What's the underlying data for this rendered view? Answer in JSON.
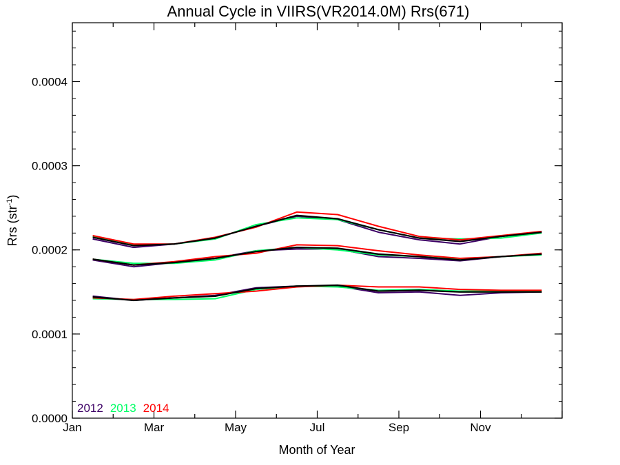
{
  "chart_data": {
    "type": "line",
    "title": "Annual Cycle in VIIRS(VR2014.0M) Rrs(671)",
    "xlabel": "Month of Year",
    "ylabel": {
      "main": "Rrs (str",
      "sup": "-1",
      "close": ")"
    },
    "xlim": [
      0,
      12
    ],
    "ylim": [
      0.0,
      0.00047
    ],
    "x_ticks": [
      {
        "value": 0,
        "label": "Jan"
      },
      {
        "value": 2,
        "label": "Mar"
      },
      {
        "value": 4,
        "label": "May"
      },
      {
        "value": 6,
        "label": "Jul"
      },
      {
        "value": 8,
        "label": "Sep"
      },
      {
        "value": 10,
        "label": "Nov"
      }
    ],
    "y_ticks": [
      {
        "value": 0.0,
        "label": "0.0000"
      },
      {
        "value": 0.0001,
        "label": "0.0001"
      },
      {
        "value": 0.0002,
        "label": "0.0002"
      },
      {
        "value": 0.0003,
        "label": "0.0003"
      },
      {
        "value": 0.0004,
        "label": "0.0004"
      }
    ],
    "x": [
      0.5,
      1.5,
      2.5,
      3.5,
      4.5,
      5.5,
      6.5,
      7.5,
      8.5,
      9.5,
      10.5,
      11.5
    ],
    "series": [
      {
        "name": "2012",
        "group": "upper",
        "color": "#3d0066",
        "values": [
          0.000213,
          0.000203,
          0.000207,
          0.000214,
          0.000228,
          0.00024,
          0.000236,
          0.000221,
          0.000212,
          0.000207,
          0.000216,
          0.000221
        ]
      },
      {
        "name": "2013",
        "group": "upper",
        "color": "#00ff66",
        "values": [
          0.000216,
          0.000206,
          0.000207,
          0.000213,
          0.00023,
          0.000238,
          0.000236,
          0.000224,
          0.000214,
          0.000213,
          0.000214,
          0.00022
        ]
      },
      {
        "name": "2014",
        "group": "upper",
        "color": "#ff0000",
        "values": [
          0.000217,
          0.000207,
          0.000207,
          0.000215,
          0.000227,
          0.000245,
          0.000242,
          0.000228,
          0.000216,
          0.000212,
          0.000217,
          0.000222
        ]
      },
      {
        "name": "",
        "group": "upper",
        "color": "#000000",
        "values": [
          0.000215,
          0.000205,
          0.000207,
          0.000214,
          0.000228,
          0.000241,
          0.000237,
          0.000224,
          0.000214,
          0.00021,
          0.000216,
          0.000221
        ]
      },
      {
        "name": "2012",
        "group": "middle",
        "color": "#3d0066",
        "values": [
          0.000188,
          0.00018,
          0.000185,
          0.00019,
          0.000199,
          0.000201,
          0.000201,
          0.000192,
          0.00019,
          0.000187,
          0.000192,
          0.000195
        ]
      },
      {
        "name": "2013",
        "group": "middle",
        "color": "#00ff66",
        "values": [
          0.000189,
          0.000184,
          0.000184,
          0.000188,
          0.000199,
          0.000203,
          0.0002,
          0.000194,
          0.000192,
          0.000189,
          0.000192,
          0.000194
        ]
      },
      {
        "name": "2014",
        "group": "middle",
        "color": "#ff0000",
        "values": [
          0.000189,
          0.000182,
          0.000186,
          0.000192,
          0.000196,
          0.000206,
          0.000205,
          0.000199,
          0.000194,
          0.00019,
          0.000192,
          0.000196
        ]
      },
      {
        "name": "",
        "group": "middle",
        "color": "#000000",
        "values": [
          0.000189,
          0.000182,
          0.000185,
          0.00019,
          0.000198,
          0.000203,
          0.000202,
          0.000195,
          0.000192,
          0.000188,
          0.000192,
          0.000195
        ]
      },
      {
        "name": "2012",
        "group": "lower",
        "color": "#3d0066",
        "values": [
          0.000145,
          0.00014,
          0.000143,
          0.000146,
          0.000155,
          0.000157,
          0.000157,
          0.000149,
          0.00015,
          0.000146,
          0.000149,
          0.00015
        ]
      },
      {
        "name": "2013",
        "group": "lower",
        "color": "#00ff66",
        "values": [
          0.000142,
          0.000141,
          0.000141,
          0.000142,
          0.000153,
          0.000157,
          0.000156,
          0.000152,
          0.000153,
          0.000151,
          0.000151,
          0.000151
        ]
      },
      {
        "name": "2014",
        "group": "lower",
        "color": "#ff0000",
        "values": [
          0.000143,
          0.000141,
          0.000145,
          0.000148,
          0.000151,
          0.000156,
          0.000158,
          0.000156,
          0.000156,
          0.000153,
          0.000152,
          0.000152
        ]
      },
      {
        "name": "",
        "group": "lower",
        "color": "#000000",
        "values": [
          0.000144,
          0.00014,
          0.000143,
          0.000145,
          0.000154,
          0.000157,
          0.000158,
          0.000151,
          0.000152,
          0.00015,
          0.00015,
          0.00015
        ]
      }
    ],
    "legend": {
      "placement": "bottom-left",
      "entries": [
        {
          "label": "2012",
          "color": "#3d0066"
        },
        {
          "label": "2013",
          "color": "#00ff66"
        },
        {
          "label": "2014",
          "color": "#ff0000"
        }
      ]
    },
    "grid": false
  }
}
